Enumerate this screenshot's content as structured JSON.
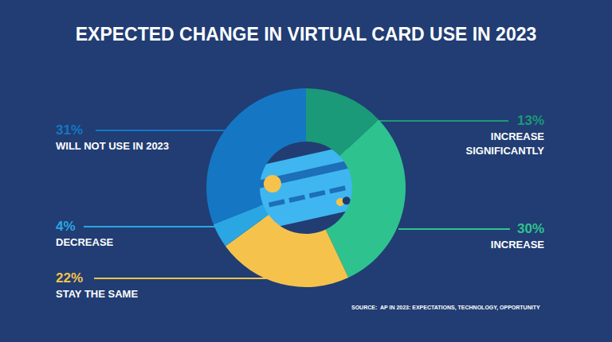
{
  "chart_data": {
    "type": "pie",
    "title": "EXPECTED CHANGE IN VIRTUAL CARD USE IN 2023",
    "categories": [
      "INCREASE\nSIGNIFICANTLY",
      "INCREASE",
      "STAY THE SAME",
      "DECREASE",
      "WILL NOT USE IN 2023"
    ],
    "values": [
      13,
      30,
      22,
      4,
      31
    ],
    "value_labels": [
      "13%",
      "30%",
      "22%",
      "4%",
      "31%"
    ],
    "colors": [
      "#1a9a78",
      "#2ec28f",
      "#f5c34b",
      "#2aa6e2",
      "#1576c4"
    ],
    "data_labels": true,
    "source": "SOURCE:  AP IN 2023: EXPECTATIONS, TECHNOLOGY, OPPORTUNITY"
  }
}
